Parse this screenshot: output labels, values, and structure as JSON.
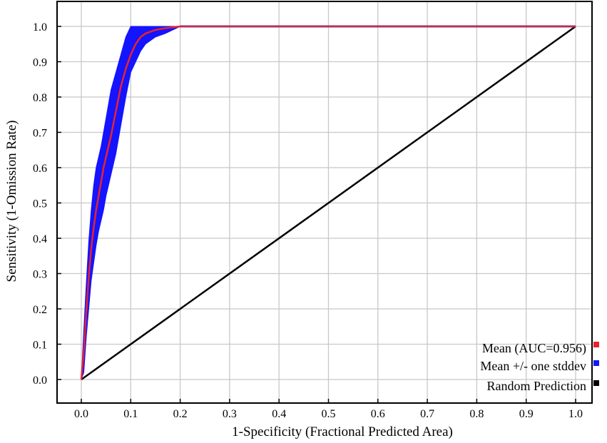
{
  "chart_data": {
    "type": "line",
    "title": "",
    "xlabel": "1-Specificity (Fractional Predicted Area)",
    "ylabel": "Sensitivity (1-Omission Rate)",
    "xlim": [
      0,
      1
    ],
    "ylim": [
      0,
      1
    ],
    "xticks": [
      "0.0",
      "0.1",
      "0.2",
      "0.3",
      "0.4",
      "0.5",
      "0.6",
      "0.7",
      "0.8",
      "0.9",
      "1.0"
    ],
    "yticks": [
      "0.0",
      "0.1",
      "0.2",
      "0.3",
      "0.4",
      "0.5",
      "0.6",
      "0.7",
      "0.8",
      "0.9",
      "1.0"
    ],
    "grid": true,
    "legend_position": "bottom-right",
    "colors": {
      "mean": "#e8222d",
      "stddev": "#1414ff",
      "random": "#000000",
      "grid": "#c8c8c8"
    },
    "series": [
      {
        "name": "Mean (AUC=0.956)",
        "x": [
          0.0,
          0.005,
          0.01,
          0.015,
          0.02,
          0.025,
          0.03,
          0.035,
          0.04,
          0.045,
          0.05,
          0.06,
          0.07,
          0.08,
          0.09,
          0.1,
          0.11,
          0.12,
          0.13,
          0.15,
          0.17,
          0.2,
          1.0
        ],
        "y": [
          0.0,
          0.08,
          0.19,
          0.29,
          0.37,
          0.43,
          0.48,
          0.52,
          0.56,
          0.6,
          0.63,
          0.69,
          0.76,
          0.83,
          0.88,
          0.92,
          0.95,
          0.97,
          0.98,
          0.99,
          0.995,
          1.0,
          1.0
        ]
      },
      {
        "name": "Mean +/- one stddev",
        "x": [
          0.0,
          0.005,
          0.01,
          0.015,
          0.02,
          0.025,
          0.03,
          0.035,
          0.04,
          0.045,
          0.05,
          0.06,
          0.07,
          0.08,
          0.09,
          0.1,
          0.11,
          0.12,
          0.13,
          0.15,
          0.17,
          0.2,
          1.0
        ],
        "lower": [
          0.0,
          0.02,
          0.12,
          0.2,
          0.28,
          0.33,
          0.38,
          0.42,
          0.45,
          0.48,
          0.52,
          0.58,
          0.64,
          0.72,
          0.8,
          0.87,
          0.9,
          0.93,
          0.95,
          0.97,
          0.98,
          1.0,
          1.0
        ],
        "upper": [
          0.0,
          0.14,
          0.27,
          0.39,
          0.48,
          0.55,
          0.6,
          0.63,
          0.66,
          0.7,
          0.74,
          0.82,
          0.87,
          0.92,
          0.97,
          1.0,
          1.0,
          1.0,
          1.0,
          1.0,
          1.0,
          1.0,
          1.0
        ]
      },
      {
        "name": "Random Prediction",
        "x": [
          0.0,
          1.0
        ],
        "y": [
          0.0,
          1.0
        ]
      }
    ]
  }
}
